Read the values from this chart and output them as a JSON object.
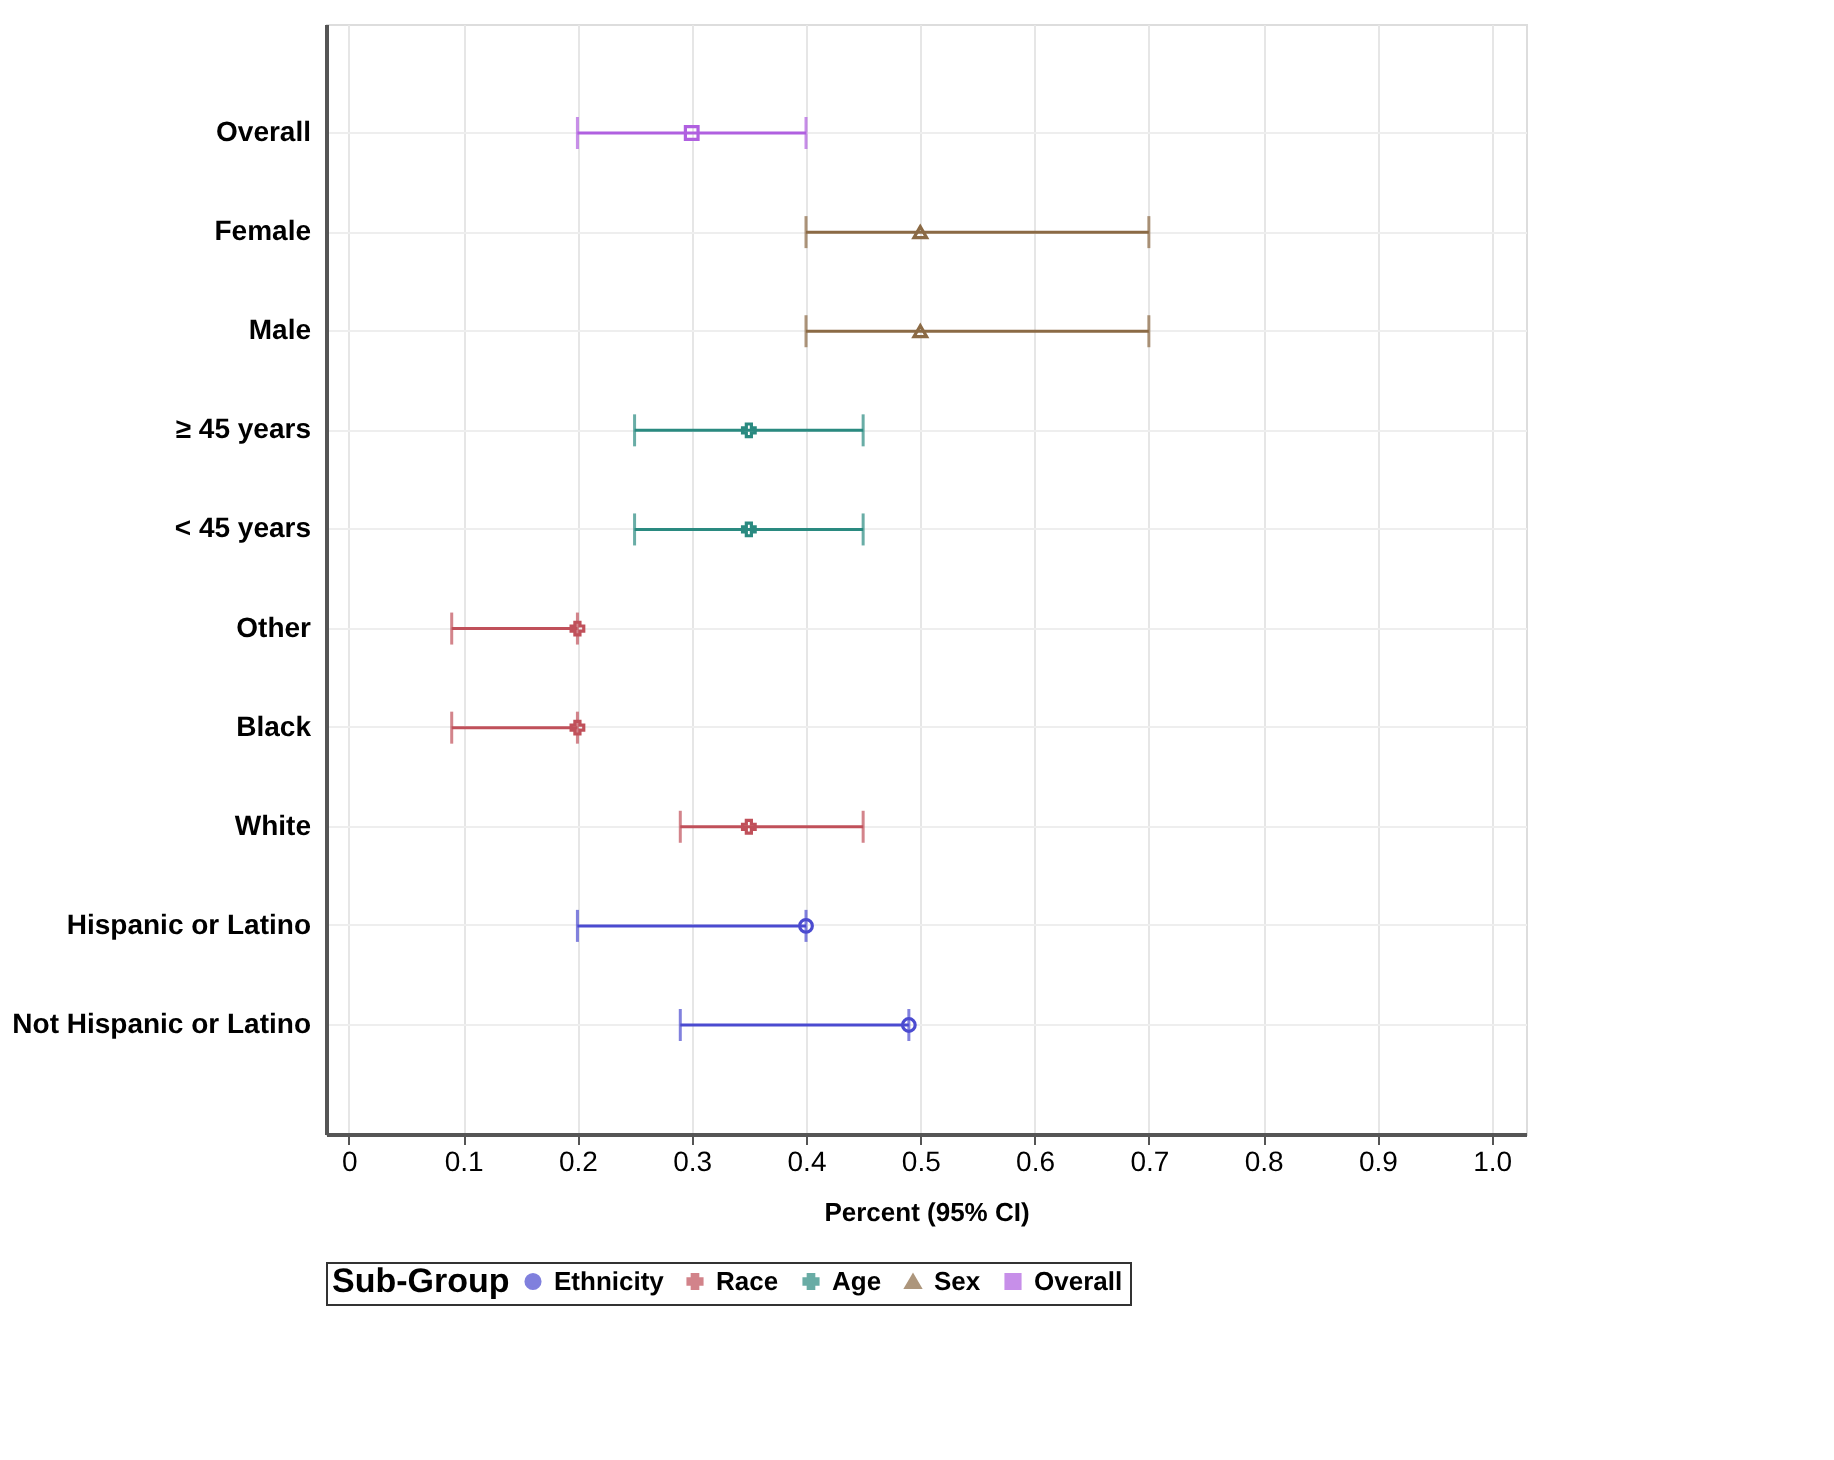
{
  "chart_data": {
    "type": "scatter",
    "xlabel": "Percent (95% CI)",
    "legend_title": "Sub-Group",
    "categories": [
      "Overall",
      "Female",
      "Male",
      "≥ 45 years",
      "< 45 years",
      "Other",
      "Black",
      "White",
      "Hispanic or Latino",
      "Not Hispanic or Latino"
    ],
    "series": [
      {
        "name": "Ethnicity",
        "color": "#4b4bd0",
        "marker": "circle",
        "values": [
          null,
          null,
          null,
          null,
          null,
          null,
          null,
          null,
          0.4,
          0.49
        ],
        "errors": [
          null,
          null,
          null,
          null,
          null,
          null,
          null,
          null,
          [
            0.2,
            0.4
          ],
          [
            0.29,
            0.49
          ]
        ]
      },
      {
        "name": "Race",
        "color": "#c0505a",
        "marker": "cross",
        "values": [
          null,
          null,
          null,
          null,
          null,
          0.2,
          0.2,
          0.35,
          null,
          null
        ],
        "errors": [
          null,
          null,
          null,
          null,
          null,
          [
            0.09,
            0.2
          ],
          [
            0.09,
            0.2
          ],
          [
            0.29,
            0.45
          ],
          null,
          null
        ]
      },
      {
        "name": "Age",
        "color": "#2a8a80",
        "marker": "cross",
        "values": [
          null,
          null,
          null,
          0.35,
          0.35,
          null,
          null,
          null,
          null,
          null
        ],
        "errors": [
          null,
          null,
          null,
          [
            0.25,
            0.45
          ],
          [
            0.25,
            0.45
          ],
          null,
          null,
          null,
          null,
          null
        ]
      },
      {
        "name": "Sex",
        "color": "#8b6a45",
        "marker": "triangle",
        "values": [
          null,
          0.5,
          0.5,
          null,
          null,
          null,
          null,
          null,
          null,
          null
        ],
        "errors": [
          null,
          [
            0.4,
            0.7
          ],
          [
            0.4,
            0.7
          ],
          null,
          null,
          null,
          null,
          null,
          null,
          null
        ]
      },
      {
        "name": "Overall",
        "color": "#b060e0",
        "marker": "square",
        "values": [
          0.3,
          null,
          null,
          null,
          null,
          null,
          null,
          null,
          null,
          null
        ],
        "errors": [
          [
            0.2,
            0.4
          ],
          null,
          null,
          null,
          null,
          null,
          null,
          null,
          null,
          null
        ]
      }
    ],
    "orientation": "horizontal",
    "xlim": [
      -0.02,
      1.03
    ],
    "xticks": [
      0,
      0.1,
      0.2,
      0.3,
      0.4,
      0.5,
      0.6,
      0.7,
      0.8,
      0.9,
      {
        "value": 1.0,
        "label": "1.0"
      }
    ],
    "grid": true,
    "legend": "bottom"
  }
}
